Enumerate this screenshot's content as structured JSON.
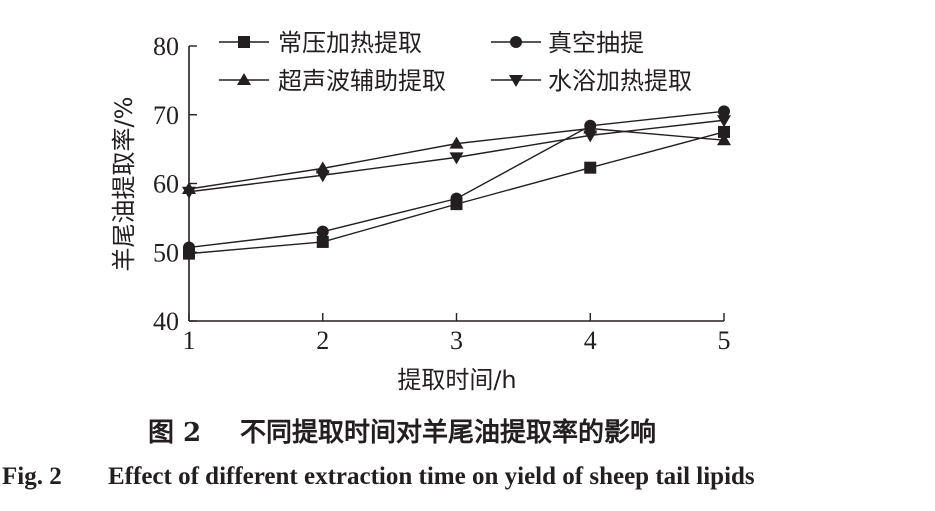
{
  "chart_data": {
    "type": "line",
    "categories": [
      1,
      2,
      3,
      4,
      5
    ],
    "series": [
      {
        "name": "常压加热提取",
        "marker": "square",
        "values": [
          49.8,
          51.5,
          57.0,
          62.3,
          67.5
        ]
      },
      {
        "name": "真空抽提",
        "marker": "circle",
        "values": [
          50.7,
          53.0,
          57.8,
          68.4,
          70.5
        ]
      },
      {
        "name": "超声波辅助提取",
        "marker": "triangle-up",
        "values": [
          59.2,
          62.2,
          65.8,
          68.0,
          66.3
        ]
      },
      {
        "name": "水浴加热提取",
        "marker": "triangle-down",
        "values": [
          58.8,
          61.2,
          63.8,
          67.0,
          69.2
        ]
      }
    ],
    "xlabel": "提取时间/h",
    "ylabel": "羊尾油提取率/%",
    "xlim": [
      1,
      5
    ],
    "ylim": [
      40,
      80
    ],
    "yticks": [
      40,
      50,
      60,
      70,
      80
    ],
    "xticks": [
      1,
      2,
      3,
      4,
      5
    ],
    "grid": false,
    "legend_position": "top"
  },
  "caption": {
    "cn_label": "图 2",
    "cn_title": "不同提取时间对羊尾油提取率的影响",
    "en_label": "Fig. 2",
    "en_title": "Effect of different extraction time on yield of sheep tail lipids"
  },
  "colors": {
    "ink": "#231f20",
    "background": "#ffffff"
  }
}
